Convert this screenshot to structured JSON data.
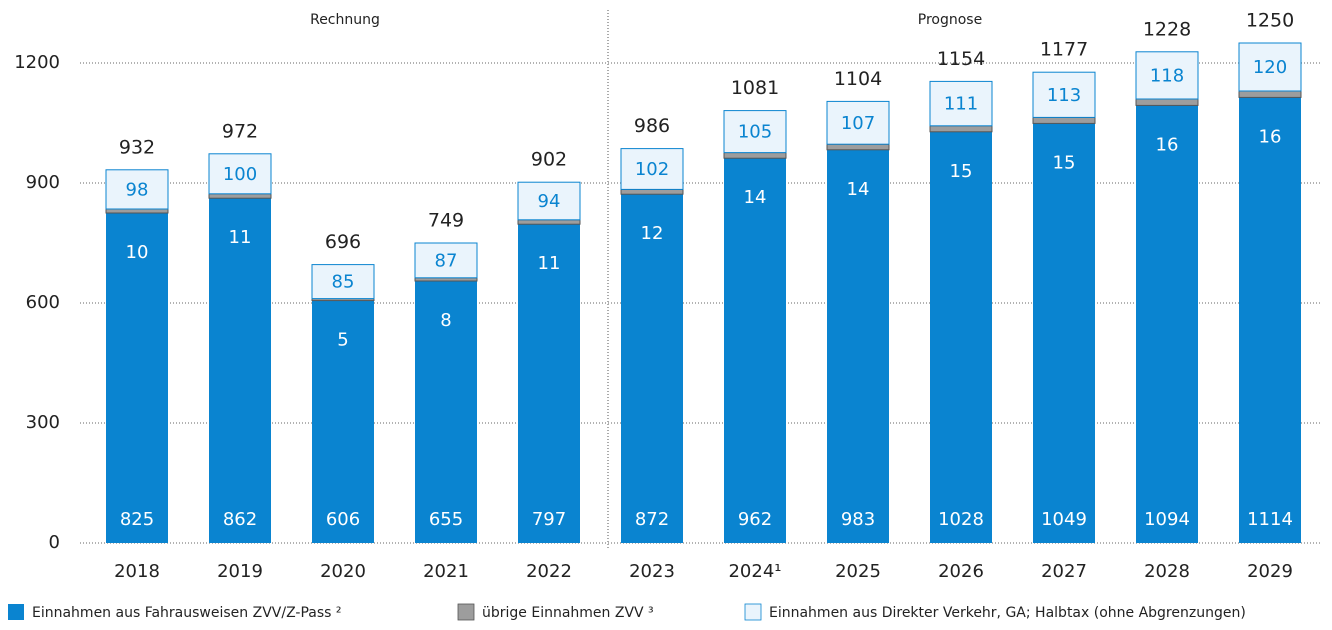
{
  "chart_data": {
    "type": "stacked_bar",
    "sections": [
      "Rechnung",
      "Prognose"
    ],
    "categories": [
      "2018",
      "2019",
      "2020",
      "2021",
      "2022",
      "2023",
      "2024¹",
      "2025",
      "2026",
      "2027",
      "2028",
      "2029"
    ],
    "series": [
      {
        "name": "Einnahmen aus Fahrausweisen ZVV/Z-Pass ²",
        "color": "#0a84d0",
        "values": [
          825,
          862,
          606,
          655,
          797,
          872,
          962,
          983,
          1028,
          1049,
          1094,
          1114
        ]
      },
      {
        "name": "übrige Einnahmen ZVV ³",
        "color": "#9d9d9d",
        "values": [
          10,
          11,
          5,
          8,
          11,
          12,
          14,
          14,
          15,
          15,
          16,
          16
        ]
      },
      {
        "name": "Einnahmen aus Direkter Verkehr, GA; Halbtax (ohne Abgrenzungen)",
        "color": "#eaf4fc",
        "values": [
          98,
          100,
          85,
          87,
          94,
          102,
          105,
          107,
          111,
          113,
          118,
          120
        ]
      }
    ],
    "totals": [
      932,
      972,
      696,
      749,
      902,
      986,
      1081,
      1104,
      1154,
      1177,
      1228,
      1250
    ],
    "ylim": [
      0,
      1300
    ],
    "yticks": [
      0,
      300,
      600,
      900,
      1200
    ],
    "grid": true
  }
}
